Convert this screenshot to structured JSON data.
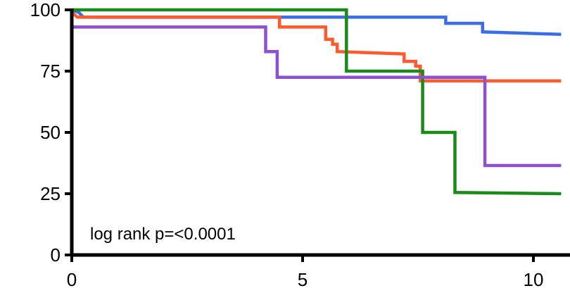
{
  "chart_data": {
    "type": "line",
    "subtype": "kaplan-meier-step",
    "title": "",
    "xlabel": "",
    "ylabel": "",
    "xlim": [
      0,
      10.6
    ],
    "ylim": [
      0,
      100
    ],
    "x_ticks": [
      0,
      5,
      10
    ],
    "x_tick_labels": [
      "0",
      "5",
      "10"
    ],
    "y_ticks": [
      0,
      25,
      50,
      75,
      100
    ],
    "y_tick_labels": [
      "0",
      "25",
      "50",
      "75",
      "100"
    ],
    "grid": false,
    "legend": "none",
    "annotation": "log rank p=<0.0001",
    "series": [
      {
        "color": "#3a6ee8",
        "points": [
          [
            0,
            100
          ],
          [
            0.15,
            99
          ],
          [
            0.25,
            97
          ],
          [
            8.1,
            97
          ],
          [
            8.1,
            94.5
          ],
          [
            8.9,
            94.5
          ],
          [
            8.9,
            91
          ],
          [
            10.6,
            90
          ]
        ]
      },
      {
        "color": "#ff5a2c",
        "points": [
          [
            0,
            99
          ],
          [
            0.12,
            97
          ],
          [
            4.5,
            97
          ],
          [
            4.5,
            93
          ],
          [
            5.5,
            93
          ],
          [
            5.5,
            88
          ],
          [
            5.65,
            88
          ],
          [
            5.65,
            86
          ],
          [
            5.75,
            86
          ],
          [
            5.75,
            83
          ],
          [
            7.2,
            82
          ],
          [
            7.2,
            79
          ],
          [
            7.45,
            79
          ],
          [
            7.45,
            77
          ],
          [
            7.55,
            77
          ],
          [
            7.55,
            71
          ],
          [
            10.6,
            71
          ]
        ]
      },
      {
        "color": "#1a8a1a",
        "points": [
          [
            0,
            100
          ],
          [
            5.95,
            100
          ],
          [
            5.95,
            75
          ],
          [
            7.6,
            75
          ],
          [
            7.6,
            50
          ],
          [
            8.3,
            50
          ],
          [
            8.3,
            25.5
          ],
          [
            10.6,
            25
          ]
        ]
      },
      {
        "color": "#8e4fd0",
        "points": [
          [
            0,
            93
          ],
          [
            4.2,
            93
          ],
          [
            4.2,
            83
          ],
          [
            4.45,
            83
          ],
          [
            4.45,
            72.5
          ],
          [
            8.95,
            72.5
          ],
          [
            8.95,
            36.5
          ],
          [
            10.6,
            36.5
          ]
        ]
      }
    ]
  }
}
